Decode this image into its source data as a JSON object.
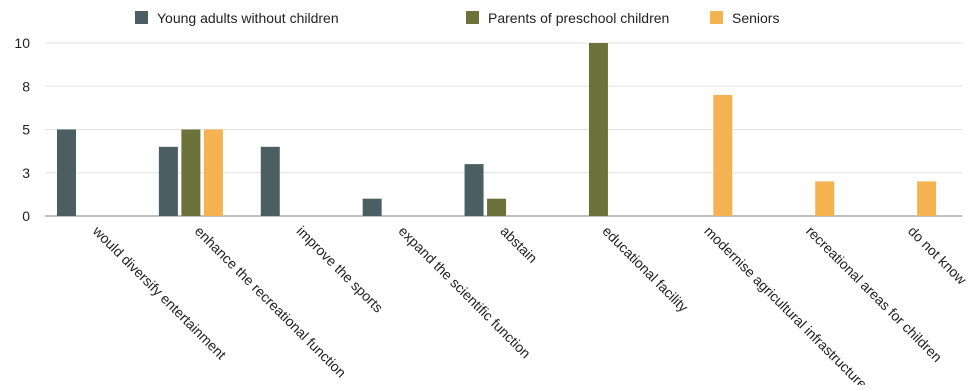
{
  "chart_data": {
    "type": "bar",
    "title": "",
    "xlabel": "",
    "ylabel": "",
    "categories": [
      "would diversify entertainment",
      "enhance the recreational function",
      "improve the sports",
      "expand the scientific function",
      "abstain",
      "educational facility",
      "modernise agricultural infrastructure",
      "recreational areas for children",
      "do not know"
    ],
    "series": [
      {
        "name": "Young adults without children",
        "color": "#4b5f63",
        "values": [
          5.0,
          4.0,
          4.0,
          1.0,
          3.0,
          null,
          null,
          null,
          null
        ]
      },
      {
        "name": "Parents of preschool children",
        "color": "#6c733a",
        "values": [
          null,
          5.0,
          null,
          null,
          1.0,
          10.0,
          null,
          null,
          null
        ]
      },
      {
        "name": "Seniors",
        "color": "#f4b350",
        "values": [
          null,
          5.0,
          null,
          null,
          null,
          null,
          7.0,
          2.0,
          2.0
        ]
      }
    ],
    "ylim": [
      0,
      10
    ],
    "yticks": [
      0,
      2.5,
      5,
      7.5,
      10
    ],
    "ytick_labels": [
      "0",
      "3",
      "5",
      "8",
      "10"
    ],
    "grid": true,
    "legend_position": "top"
  }
}
